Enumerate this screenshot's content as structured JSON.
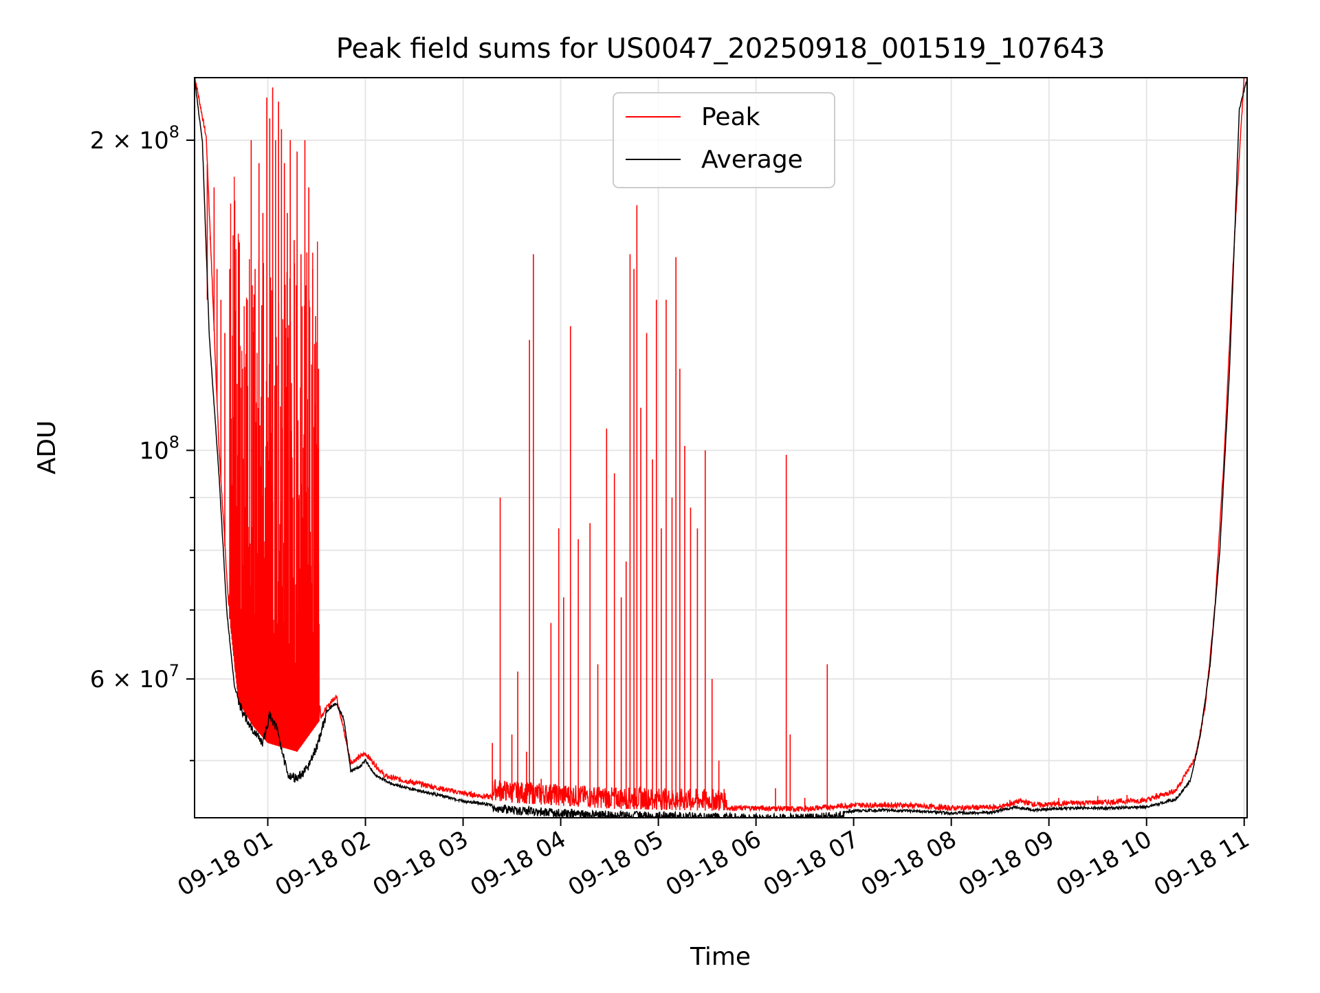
{
  "chart_data": {
    "type": "line",
    "title": "Peak field sums for US0047_20250918_001519_107643",
    "xlabel": "Time",
    "ylabel": "ADU",
    "yscale": "log",
    "ylim": [
      44000000,
      230000000
    ],
    "xlim_hours": [
      0.25,
      11.03
    ],
    "grid": true,
    "legend_position": "upper-center",
    "x_ticks": [
      {
        "hour": 1,
        "label": "09-18 01"
      },
      {
        "hour": 2,
        "label": "09-18 02"
      },
      {
        "hour": 3,
        "label": "09-18 03"
      },
      {
        "hour": 4,
        "label": "09-18 04"
      },
      {
        "hour": 5,
        "label": "09-18 05"
      },
      {
        "hour": 6,
        "label": "09-18 06"
      },
      {
        "hour": 7,
        "label": "09-18 07"
      },
      {
        "hour": 8,
        "label": "09-18 08"
      },
      {
        "hour": 9,
        "label": "09-18 09"
      },
      {
        "hour": 10,
        "label": "09-18 10"
      },
      {
        "hour": 11,
        "label": "09-18 11"
      }
    ],
    "y_major_ticks": [
      {
        "value": 60000000,
        "mantissa": "6 × 10",
        "exp": "7"
      },
      {
        "value": 100000000,
        "mantissa": "10",
        "exp": "8"
      },
      {
        "value": 200000000,
        "mantissa": "2 × 10",
        "exp": "8"
      }
    ],
    "y_minor_ticks": [
      50000000,
      70000000,
      80000000,
      90000000
    ],
    "series": [
      {
        "name": "Peak",
        "color": "#ff0000",
        "baseline": [
          [
            0.25,
            230000000
          ],
          [
            0.37,
            200000000
          ],
          [
            0.5,
            100000000
          ],
          [
            0.6,
            70000000
          ],
          [
            0.7,
            57000000
          ],
          [
            0.85,
            54000000
          ],
          [
            1.0,
            52000000
          ],
          [
            1.3,
            51000000
          ],
          [
            1.55,
            55000000
          ],
          [
            1.7,
            57500000
          ],
          [
            1.85,
            49500000
          ],
          [
            2.0,
            50500000
          ],
          [
            2.2,
            48000000
          ],
          [
            2.5,
            47300000
          ],
          [
            3.0,
            46200000
          ],
          [
            3.5,
            45500000
          ],
          [
            4.0,
            45200000
          ],
          [
            4.5,
            44900000
          ],
          [
            5.0,
            44800000
          ],
          [
            5.5,
            44700000
          ],
          [
            6.0,
            44700000
          ],
          [
            6.5,
            44600000
          ],
          [
            7.0,
            45000000
          ],
          [
            7.5,
            45000000
          ],
          [
            8.0,
            44700000
          ],
          [
            8.5,
            44800000
          ],
          [
            8.7,
            45400000
          ],
          [
            8.9,
            45000000
          ],
          [
            9.2,
            45200000
          ],
          [
            9.6,
            45300000
          ],
          [
            10.0,
            45500000
          ],
          [
            10.3,
            46500000
          ],
          [
            10.5,
            50000000
          ],
          [
            10.6,
            56000000
          ],
          [
            10.7,
            70000000
          ],
          [
            10.8,
            100000000
          ],
          [
            10.9,
            160000000
          ],
          [
            11.0,
            230000000
          ]
        ],
        "spikes": [
          [
            0.38,
            140000000
          ],
          [
            0.41,
            160000000
          ],
          [
            0.45,
            180000000
          ],
          [
            0.48,
            150000000
          ],
          [
            0.52,
            140000000
          ],
          [
            0.56,
            130000000
          ],
          [
            0.61,
            150000000
          ],
          [
            0.65,
            100000000
          ],
          [
            0.7,
            160000000
          ],
          [
            0.74,
            120000000
          ],
          [
            0.79,
            140000000
          ],
          [
            0.83,
            200000000
          ],
          [
            0.87,
            150000000
          ],
          [
            0.91,
            190000000
          ],
          [
            0.95,
            170000000
          ],
          [
            0.99,
            220000000
          ],
          [
            1.02,
            210000000
          ],
          [
            1.05,
            225000000
          ],
          [
            1.08,
            200000000
          ],
          [
            1.11,
            218000000
          ],
          [
            1.14,
            205000000
          ],
          [
            1.17,
            190000000
          ],
          [
            1.2,
            170000000
          ],
          [
            1.23,
            200000000
          ],
          [
            1.27,
            160000000
          ],
          [
            1.3,
            195000000
          ],
          [
            1.34,
            155000000
          ],
          [
            1.38,
            200000000
          ],
          [
            1.42,
            180000000
          ],
          [
            1.46,
            150000000
          ],
          [
            1.49,
            135000000
          ],
          [
            1.52,
            120000000
          ],
          [
            3.3,
            52000000
          ],
          [
            3.38,
            90000000
          ],
          [
            3.5,
            53000000
          ],
          [
            3.56,
            61000000
          ],
          [
            3.65,
            51000000
          ],
          [
            3.68,
            128000000
          ],
          [
            3.72,
            155000000
          ],
          [
            3.8,
            48000000
          ],
          [
            3.9,
            68000000
          ],
          [
            3.98,
            84000000
          ],
          [
            4.03,
            72000000
          ],
          [
            4.1,
            132000000
          ],
          [
            4.18,
            82000000
          ],
          [
            4.3,
            85000000
          ],
          [
            4.38,
            62000000
          ],
          [
            4.47,
            105000000
          ],
          [
            4.55,
            95000000
          ],
          [
            4.62,
            72000000
          ],
          [
            4.67,
            78000000
          ],
          [
            4.71,
            155000000
          ],
          [
            4.75,
            150000000
          ],
          [
            4.78,
            173000000
          ],
          [
            4.82,
            110000000
          ],
          [
            4.88,
            130000000
          ],
          [
            4.94,
            98000000
          ],
          [
            4.98,
            140000000
          ],
          [
            5.03,
            84000000
          ],
          [
            5.08,
            140000000
          ],
          [
            5.14,
            90000000
          ],
          [
            5.18,
            154000000
          ],
          [
            5.22,
            120000000
          ],
          [
            5.27,
            101000000
          ],
          [
            5.33,
            88000000
          ],
          [
            5.4,
            84000000
          ],
          [
            5.48,
            100000000
          ],
          [
            5.55,
            60000000
          ],
          [
            5.62,
            50000000
          ],
          [
            6.2,
            47000000
          ],
          [
            6.31,
            99000000
          ],
          [
            6.35,
            53000000
          ],
          [
            6.5,
            46000000
          ],
          [
            6.73,
            62000000
          ],
          [
            7.2,
            45000000
          ],
          [
            7.5,
            45300000
          ],
          [
            8.0,
            45100000
          ],
          [
            8.6,
            45800000
          ],
          [
            9.1,
            46000000
          ],
          [
            9.5,
            46200000
          ],
          [
            9.8,
            46300000
          ],
          [
            10.1,
            46500000
          ]
        ]
      },
      {
        "name": "Average",
        "color": "#000000",
        "points": [
          [
            0.25,
            230000000
          ],
          [
            0.33,
            200000000
          ],
          [
            0.4,
            130000000
          ],
          [
            0.5,
            95000000
          ],
          [
            0.58,
            70000000
          ],
          [
            0.66,
            59000000
          ],
          [
            0.75,
            56000000
          ],
          [
            0.85,
            54000000
          ],
          [
            0.95,
            52500000
          ],
          [
            1.02,
            56000000
          ],
          [
            1.1,
            54000000
          ],
          [
            1.2,
            49000000
          ],
          [
            1.3,
            48500000
          ],
          [
            1.4,
            49500000
          ],
          [
            1.5,
            52000000
          ],
          [
            1.6,
            56000000
          ],
          [
            1.7,
            57000000
          ],
          [
            1.78,
            55000000
          ],
          [
            1.85,
            49000000
          ],
          [
            1.95,
            49500000
          ],
          [
            2.0,
            50200000
          ],
          [
            2.1,
            48500000
          ],
          [
            2.3,
            47500000
          ],
          [
            2.5,
            47000000
          ],
          [
            2.8,
            46300000
          ],
          [
            3.0,
            45800000
          ],
          [
            3.5,
            45200000
          ],
          [
            4.0,
            44900000
          ],
          [
            4.5,
            44700000
          ],
          [
            5.0,
            44600000
          ],
          [
            5.5,
            44500000
          ],
          [
            6.0,
            44400000
          ],
          [
            6.5,
            44400000
          ],
          [
            7.0,
            44800000
          ],
          [
            7.3,
            44900000
          ],
          [
            7.6,
            44800000
          ],
          [
            8.0,
            44600000
          ],
          [
            8.4,
            44650000
          ],
          [
            8.65,
            45200000
          ],
          [
            8.85,
            44900000
          ],
          [
            9.2,
            45100000
          ],
          [
            9.6,
            45100000
          ],
          [
            10.0,
            45200000
          ],
          [
            10.3,
            46000000
          ],
          [
            10.45,
            48000000
          ],
          [
            10.55,
            53000000
          ],
          [
            10.65,
            62000000
          ],
          [
            10.75,
            80000000
          ],
          [
            10.85,
            120000000
          ],
          [
            10.92,
            180000000
          ],
          [
            10.95,
            215000000
          ],
          [
            11.03,
            230000000
          ]
        ]
      }
    ]
  }
}
